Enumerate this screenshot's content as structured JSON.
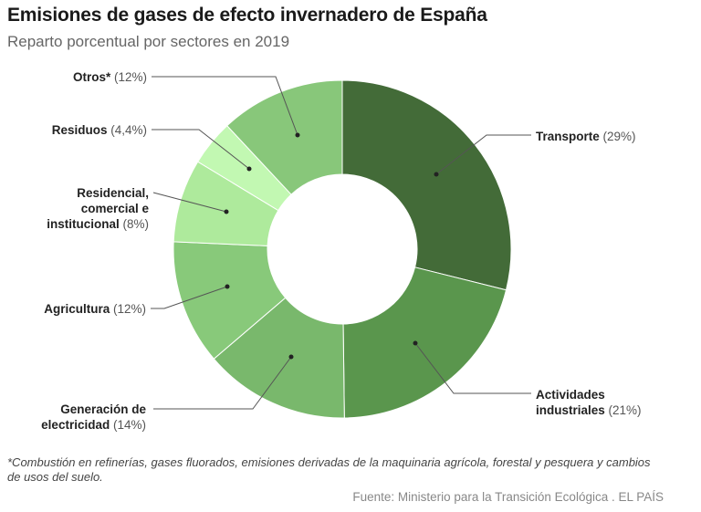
{
  "chart_data": {
    "type": "pie",
    "variant": "donut",
    "title": "Emisiones de gases de efecto invernadero de España",
    "subtitle": "Reparto porcentual por sectores en 2019",
    "slices": [
      {
        "name": "Transporte",
        "value": 29,
        "pct_label": "(29%)",
        "color": "#436b38"
      },
      {
        "name": "Actividades industriales",
        "value": 21,
        "pct_label": "(21%)",
        "color": "#5a964d"
      },
      {
        "name": "Generación de electricidad",
        "value": 14,
        "pct_label": "(14%)",
        "color": "#79b86c"
      },
      {
        "name": "Agricultura",
        "value": 12,
        "pct_label": "(12%)",
        "color": "#88c97a"
      },
      {
        "name": "Residencial, comercial e institucional",
        "value": 8,
        "pct_label": "(8%)",
        "color": "#aeea9c"
      },
      {
        "name": "Residuos",
        "value": 4.4,
        "pct_label": "(4,4%)",
        "color": "#c2f8b2"
      },
      {
        "name": "Otros*",
        "value": 12,
        "pct_label": "(12%)",
        "color": "#88c77a"
      }
    ],
    "label_parts": {
      "transporte": "Transporte",
      "actividades_1": "Actividades",
      "actividades_2": "industriales",
      "generacion_1": "Generación de",
      "generacion_2": "electricidad",
      "agricultura": "Agricultura",
      "residencial_1": "Residencial,",
      "residencial_2": "comercial e",
      "residencial_3": "institucional",
      "residuos": "Residuos",
      "otros": "Otros*"
    },
    "note": "*Combustión en refinerías, gases fluorados, emisiones derivadas de la maquinaria agrícola, forestal y pesquera y cambios de usos del suelo.",
    "source": "Fuente: Ministerio para la Transición Ecológica . EL PAÍS"
  }
}
